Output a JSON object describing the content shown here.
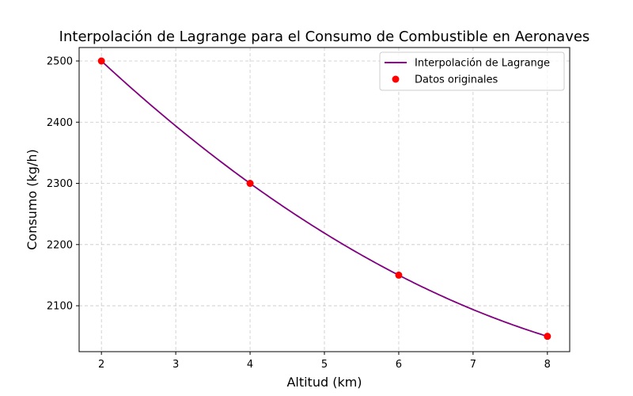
{
  "chart_data": {
    "type": "line",
    "title": "Interpolación de Lagrange para el Consumo de Combustible en Aeronaves",
    "xlabel": "Altitud (km)",
    "ylabel": "Consumo (kg/h)",
    "xlim": [
      1.7,
      8.3
    ],
    "ylim": [
      2025,
      2522
    ],
    "xticks": [
      2,
      3,
      4,
      5,
      6,
      7,
      8
    ],
    "yticks": [
      2100,
      2200,
      2300,
      2400,
      2500
    ],
    "grid": true,
    "legend_position": "top-right",
    "series": [
      {
        "name": "Interpolación de Lagrange",
        "kind": "line",
        "color": "#800080",
        "x_range": [
          2,
          8
        ]
      },
      {
        "name": "Datos originales",
        "kind": "scatter",
        "color": "#ff0000",
        "x": [
          2,
          4,
          6,
          8
        ],
        "y": [
          2500,
          2300,
          2150,
          2050
        ]
      }
    ]
  }
}
